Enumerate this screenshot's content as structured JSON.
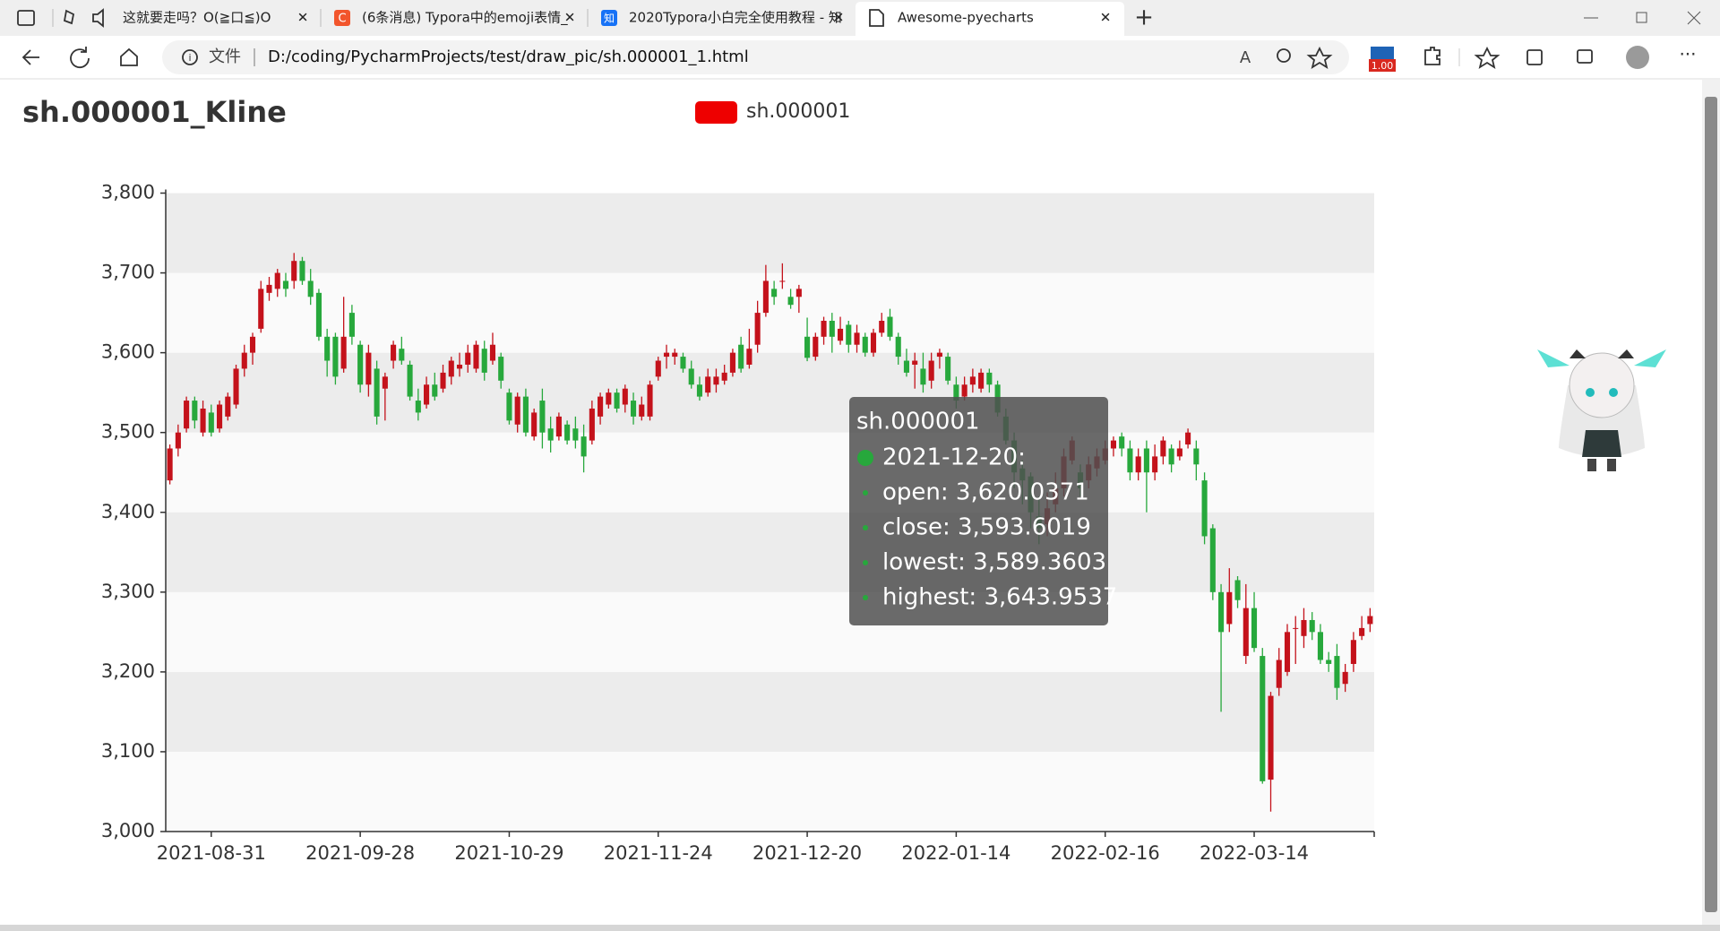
{
  "browser": {
    "tabs": [
      "这就要走吗？O(≧口≦)O",
      "(6条消息) Typora中的emoji表情_",
      "2020Typora小白完全使用教程 - 知",
      "Awesome-pyecharts"
    ],
    "address_label": "文件",
    "url": "D:/coding/PycharmProjects/test/draw_pic/sh.000001_1.html",
    "extension_badge": "1.00"
  },
  "chart_data": {
    "type": "candlestick",
    "title": "sh.000001_Kline",
    "legend": "top-center",
    "ylim": [
      3000,
      3800
    ],
    "yticks": [
      {
        "value": 3000,
        "label": "3,000"
      },
      {
        "value": 3100,
        "label": "3,100"
      },
      {
        "value": 3200,
        "label": "3,200"
      },
      {
        "value": 3300,
        "label": "3,300"
      },
      {
        "value": 3400,
        "label": "3,400"
      },
      {
        "value": 3500,
        "label": "3,500"
      },
      {
        "value": 3600,
        "label": "3,600"
      },
      {
        "value": 3700,
        "label": "3,700"
      },
      {
        "value": 3800,
        "label": "3,800"
      }
    ],
    "grid_bands": [
      "#fafafa",
      "#ececec"
    ],
    "categories": [
      null,
      null,
      null,
      null,
      null,
      "2021-08-31",
      null,
      null,
      null,
      null,
      null,
      null,
      null,
      null,
      null,
      null,
      null,
      null,
      null,
      null,
      null,
      null,
      null,
      "2021-09-28",
      null,
      null,
      null,
      null,
      null,
      null,
      null,
      null,
      null,
      null,
      null,
      null,
      null,
      null,
      null,
      null,
      null,
      "2021-10-29",
      null,
      null,
      null,
      null,
      null,
      null,
      null,
      null,
      null,
      null,
      null,
      null,
      null,
      null,
      null,
      null,
      null,
      "2021-11-24",
      null,
      null,
      null,
      null,
      null,
      null,
      null,
      null,
      null,
      null,
      null,
      null,
      null,
      null,
      null,
      null,
      null,
      "2021-12-20",
      null,
      null,
      null,
      null,
      null,
      null,
      null,
      null,
      null,
      null,
      null,
      null,
      null,
      null,
      null,
      null,
      null,
      "2022-01-14",
      null,
      null,
      null,
      null,
      null,
      null,
      null,
      null,
      null,
      null,
      null,
      null,
      null,
      null,
      null,
      null,
      null,
      "2022-02-16",
      null,
      null,
      null,
      null,
      null,
      null,
      null,
      null,
      null,
      null,
      null,
      null,
      null,
      null,
      null,
      null,
      null,
      "2022-03-14",
      null,
      null,
      null,
      null,
      null,
      null,
      null,
      null,
      null,
      null,
      null,
      null,
      null,
      null
    ],
    "series": [
      {
        "name": "sh.000001",
        "color": "#ee0000",
        "up_color": "#c4121b",
        "down_color": "#27a83c",
        "values": [
          [
            3440,
            3480,
            3435,
            3485
          ],
          [
            3480,
            3500,
            3470,
            3510
          ],
          [
            3505,
            3540,
            3500,
            3545
          ],
          [
            3540,
            3515,
            3505,
            3545
          ],
          [
            3500,
            3530,
            3495,
            3540
          ],
          [
            3525,
            3500,
            3495,
            3535
          ],
          [
            3505,
            3535,
            3500,
            3540
          ],
          [
            3520,
            3545,
            3515,
            3550
          ],
          [
            3535,
            3580,
            3530,
            3585
          ],
          [
            3580,
            3600,
            3570,
            3610
          ],
          [
            3600,
            3620,
            3585,
            3625
          ],
          [
            3630,
            3680,
            3625,
            3690
          ],
          [
            3675,
            3685,
            3665,
            3695
          ],
          [
            3680,
            3700,
            3670,
            3705
          ],
          [
            3690,
            3680,
            3670,
            3700
          ],
          [
            3690,
            3715,
            3680,
            3725
          ],
          [
            3715,
            3690,
            3685,
            3720
          ],
          [
            3690,
            3670,
            3660,
            3705
          ],
          [
            3675,
            3620,
            3615,
            3680
          ],
          [
            3620,
            3590,
            3570,
            3630
          ],
          [
            3620,
            3570,
            3560,
            3625
          ],
          [
            3580,
            3620,
            3575,
            3670
          ],
          [
            3650,
            3620,
            3610,
            3660
          ],
          [
            3610,
            3560,
            3550,
            3615
          ],
          [
            3560,
            3600,
            3545,
            3610
          ],
          [
            3580,
            3520,
            3510,
            3590
          ],
          [
            3555,
            3570,
            3515,
            3575
          ],
          [
            3590,
            3610,
            3580,
            3615
          ],
          [
            3605,
            3590,
            3585,
            3620
          ],
          [
            3585,
            3545,
            3540,
            3590
          ],
          [
            3540,
            3525,
            3515,
            3555
          ],
          [
            3535,
            3560,
            3530,
            3570
          ],
          [
            3560,
            3545,
            3540,
            3575
          ],
          [
            3555,
            3575,
            3550,
            3585
          ],
          [
            3570,
            3590,
            3560,
            3595
          ],
          [
            3580,
            3585,
            3570,
            3600
          ],
          [
            3585,
            3600,
            3575,
            3610
          ],
          [
            3580,
            3610,
            3575,
            3615
          ],
          [
            3605,
            3575,
            3565,
            3615
          ],
          [
            3590,
            3610,
            3585,
            3625
          ],
          [
            3595,
            3565,
            3555,
            3600
          ],
          [
            3550,
            3515,
            3510,
            3555
          ],
          [
            3510,
            3545,
            3500,
            3550
          ],
          [
            3545,
            3500,
            3495,
            3555
          ],
          [
            3495,
            3525,
            3490,
            3530
          ],
          [
            3540,
            3500,
            3480,
            3555
          ],
          [
            3505,
            3490,
            3475,
            3520
          ],
          [
            3495,
            3520,
            3490,
            3525
          ],
          [
            3510,
            3490,
            3485,
            3515
          ],
          [
            3505,
            3490,
            3480,
            3520
          ],
          [
            3495,
            3470,
            3450,
            3510
          ],
          [
            3490,
            3530,
            3485,
            3540
          ],
          [
            3520,
            3545,
            3510,
            3550
          ],
          [
            3535,
            3550,
            3530,
            3555
          ],
          [
            3550,
            3530,
            3525,
            3555
          ],
          [
            3535,
            3555,
            3525,
            3560
          ],
          [
            3540,
            3520,
            3510,
            3550
          ],
          [
            3520,
            3535,
            3515,
            3545
          ],
          [
            3520,
            3560,
            3515,
            3565
          ],
          [
            3570,
            3590,
            3565,
            3595
          ],
          [
            3595,
            3600,
            3580,
            3610
          ],
          [
            3595,
            3600,
            3585,
            3605
          ],
          [
            3595,
            3580,
            3575,
            3600
          ],
          [
            3580,
            3560,
            3555,
            3590
          ],
          [
            3560,
            3545,
            3540,
            3570
          ],
          [
            3550,
            3570,
            3545,
            3580
          ],
          [
            3560,
            3570,
            3550,
            3580
          ],
          [
            3565,
            3575,
            3560,
            3585
          ],
          [
            3575,
            3600,
            3570,
            3605
          ],
          [
            3610,
            3580,
            3575,
            3620
          ],
          [
            3585,
            3605,
            3580,
            3630
          ],
          [
            3610,
            3650,
            3600,
            3665
          ],
          [
            3650,
            3690,
            3645,
            3710
          ],
          [
            3680,
            3670,
            3660,
            3690
          ],
          [
            3690,
            3690,
            3680,
            3712
          ],
          [
            3670,
            3660,
            3655,
            3680
          ],
          [
            3670,
            3680,
            3650,
            3685
          ],
          [
            3620.0371,
            3593.6019,
            3589.3603,
            3643.9537
          ],
          [
            3595,
            3620,
            3590,
            3625
          ],
          [
            3620,
            3640,
            3610,
            3645
          ],
          [
            3640,
            3620,
            3600,
            3650
          ],
          [
            3615,
            3630,
            3610,
            3645
          ],
          [
            3635,
            3610,
            3600,
            3640
          ],
          [
            3610,
            3625,
            3600,
            3635
          ],
          [
            3620,
            3600,
            3595,
            3625
          ],
          [
            3600,
            3625,
            3595,
            3630
          ],
          [
            3625,
            3640,
            3620,
            3650
          ],
          [
            3645,
            3620,
            3615,
            3655
          ],
          [
            3620,
            3595,
            3585,
            3625
          ],
          [
            3590,
            3575,
            3570,
            3605
          ],
          [
            3585,
            3590,
            3555,
            3600
          ],
          [
            3580,
            3560,
            3550,
            3600
          ],
          [
            3565,
            3590,
            3555,
            3600
          ],
          [
            3595,
            3600,
            3580,
            3605
          ],
          [
            3595,
            3565,
            3560,
            3600
          ],
          [
            3560,
            3540,
            3530,
            3570
          ],
          [
            3545,
            3560,
            3540,
            3570
          ],
          [
            3560,
            3570,
            3550,
            3580
          ],
          [
            3555,
            3575,
            3550,
            3580
          ],
          [
            3575,
            3560,
            3550,
            3580
          ],
          [
            3560,
            3525,
            3520,
            3565
          ],
          [
            3520,
            3490,
            3485,
            3530
          ],
          [
            3490,
            3450,
            3430,
            3500
          ],
          [
            3455,
            3440,
            3410,
            3465
          ],
          [
            3445,
            3400,
            3380,
            3450
          ],
          [
            3395,
            3380,
            3360,
            3420
          ],
          [
            3385,
            3405,
            3370,
            3425
          ],
          [
            3410,
            3430,
            3400,
            3450
          ],
          [
            3430,
            3470,
            3420,
            3480
          ],
          [
            3465,
            3490,
            3460,
            3495
          ],
          [
            3450,
            3430,
            3420,
            3460
          ],
          [
            3440,
            3460,
            3430,
            3470
          ],
          [
            3455,
            3470,
            3445,
            3480
          ],
          [
            3465,
            3480,
            3460,
            3490
          ],
          [
            3480,
            3490,
            3470,
            3495
          ],
          [
            3495,
            3480,
            3470,
            3500
          ],
          [
            3480,
            3450,
            3440,
            3490
          ],
          [
            3450,
            3470,
            3440,
            3480
          ],
          [
            3480,
            3450,
            3400,
            3490
          ],
          [
            3450,
            3470,
            3440,
            3485
          ],
          [
            3470,
            3490,
            3460,
            3495
          ],
          [
            3480,
            3460,
            3450,
            3485
          ],
          [
            3470,
            3480,
            3465,
            3490
          ],
          [
            3485,
            3500,
            3480,
            3505
          ],
          [
            3480,
            3460,
            3440,
            3490
          ],
          [
            3440,
            3370,
            3360,
            3450
          ],
          [
            3380,
            3300,
            3290,
            3385
          ],
          [
            3300,
            3250,
            3150,
            3310
          ],
          [
            3260,
            3300,
            3250,
            3330
          ],
          [
            3315,
            3290,
            3280,
            3320
          ],
          [
            3220,
            3280,
            3210,
            3310
          ],
          [
            3280,
            3230,
            3225,
            3300
          ],
          [
            3220,
            3063,
            3060,
            3230
          ],
          [
            3065,
            3170,
            3025,
            3175
          ],
          [
            3180,
            3215,
            3170,
            3230
          ],
          [
            3200,
            3250,
            3195,
            3260
          ],
          [
            3255,
            3255,
            3210,
            3270
          ],
          [
            3245,
            3265,
            3230,
            3280
          ],
          [
            3265,
            3250,
            3240,
            3275
          ],
          [
            3250,
            3215,
            3210,
            3260
          ],
          [
            3215,
            3210,
            3200,
            3225
          ],
          [
            3220,
            3180,
            3165,
            3235
          ],
          [
            3185,
            3200,
            3175,
            3210
          ],
          [
            3210,
            3240,
            3200,
            3250
          ],
          [
            3245,
            3255,
            3240,
            3270
          ],
          [
            3260,
            3270,
            3250,
            3280
          ]
        ]
      }
    ],
    "tooltip": {
      "index": 77,
      "date": "2021-12-20:",
      "items": [
        "open: 3,620.0371",
        "close: 3,593.6019",
        "lowest: 3,589.3603",
        "highest: 3,643.9537"
      ]
    }
  }
}
